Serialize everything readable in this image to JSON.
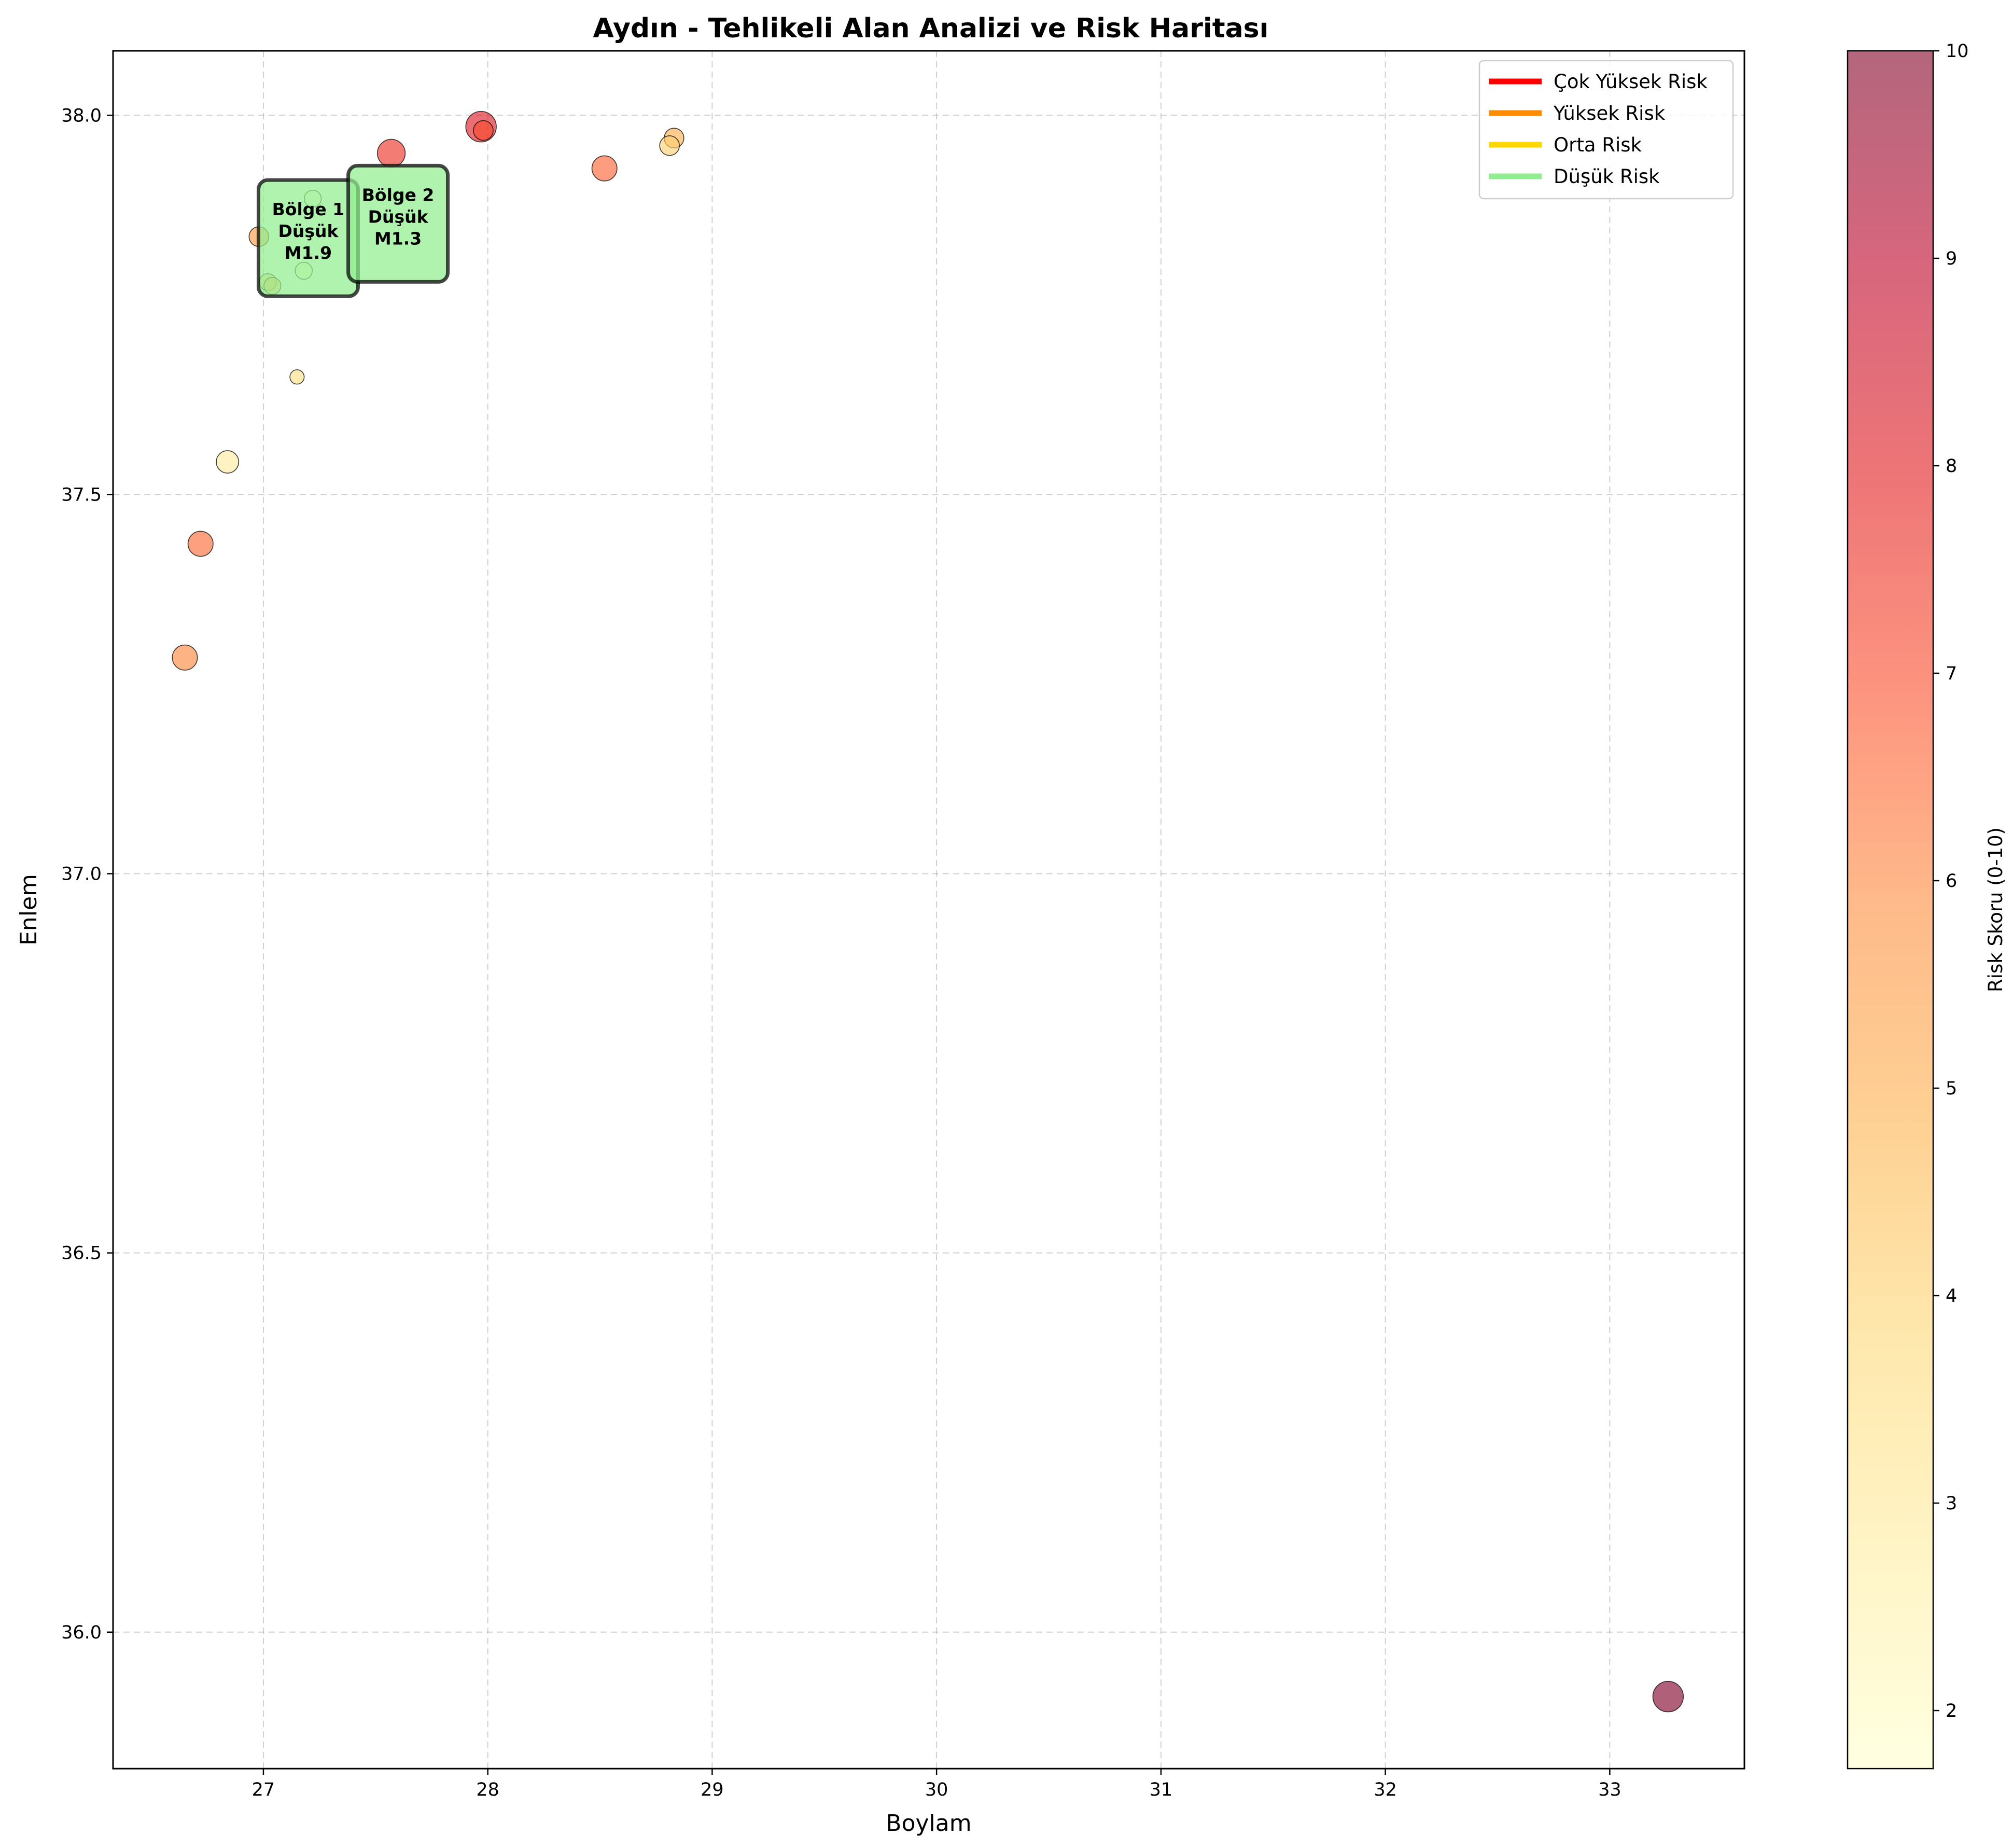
{
  "chart_data": {
    "type": "scatter",
    "title": "Aydın - Tehlikeli Alan Analizi ve Risk Haritası",
    "xlabel": "Boylam",
    "ylabel": "Enlem",
    "xlim": [
      26.33,
      33.6
    ],
    "ylim": [
      35.82,
      38.085
    ],
    "xticks": [
      27,
      28,
      29,
      30,
      31,
      32,
      33
    ],
    "yticks": [
      36.0,
      36.5,
      37.0,
      37.5,
      38.0
    ],
    "xtick_labels": [
      "27",
      "28",
      "29",
      "30",
      "31",
      "32",
      "33"
    ],
    "ytick_labels": [
      "36.0",
      "36.5",
      "37.0",
      "37.5",
      "38.0"
    ],
    "grid": true,
    "legend_position": "top-right",
    "legend": [
      {
        "label": "Çok Yüksek Risk",
        "color": "#ff0000"
      },
      {
        "label": "Yüksek Risk",
        "color": "#ff8c00"
      },
      {
        "label": "Orta Risk",
        "color": "#ffd700"
      },
      {
        "label": "Düşük Risk",
        "color": "#90ee90"
      }
    ],
    "colorbar": {
      "label": "Risk Skoru (0-10)",
      "min": 1.72,
      "max": 10,
      "ticks": [
        2,
        3,
        4,
        5,
        6,
        7,
        8,
        9,
        10
      ],
      "tick_labels": [
        "2",
        "3",
        "4",
        "5",
        "6",
        "7",
        "8",
        "9",
        "10"
      ],
      "colormap": "YlOrRd"
    },
    "points": [
      {
        "x": 27.97,
        "y": 37.985,
        "risk": 8.1,
        "size": 9
      },
      {
        "x": 27.98,
        "y": 37.98,
        "risk": 7.0,
        "size": 5
      },
      {
        "x": 27.57,
        "y": 37.95,
        "risk": 7.6,
        "size": 8
      },
      {
        "x": 28.52,
        "y": 37.93,
        "risk": 6.6,
        "size": 7
      },
      {
        "x": 28.83,
        "y": 37.97,
        "risk": 4.9,
        "size": 5
      },
      {
        "x": 28.81,
        "y": 37.96,
        "risk": 4.0,
        "size": 5
      },
      {
        "x": 26.98,
        "y": 37.84,
        "risk": 5.5,
        "size": 5
      },
      {
        "x": 27.02,
        "y": 37.78,
        "risk": 4.0,
        "size": 4
      },
      {
        "x": 27.04,
        "y": 37.775,
        "risk": 4.6,
        "size": 4
      },
      {
        "x": 27.18,
        "y": 37.795,
        "risk": 1.9,
        "size": 4
      },
      {
        "x": 27.22,
        "y": 37.89,
        "risk": 1.8,
        "size": 4
      },
      {
        "x": 27.15,
        "y": 37.655,
        "risk": 3.5,
        "size": 3
      },
      {
        "x": 26.84,
        "y": 37.543,
        "risk": 2.8,
        "size": 6
      },
      {
        "x": 26.72,
        "y": 37.435,
        "risk": 6.5,
        "size": 7
      },
      {
        "x": 26.65,
        "y": 37.285,
        "risk": 6.0,
        "size": 7
      },
      {
        "x": 33.26,
        "y": 35.915,
        "risk": 10.0,
        "size": 9
      }
    ],
    "annotations": [
      {
        "x": 27.2,
        "y": 37.838,
        "lines": [
          "Bölge 1",
          "Düşük",
          "M1.9"
        ]
      },
      {
        "x": 27.6,
        "y": 37.857,
        "lines": [
          "Bölge 2",
          "Düşük",
          "M1.3"
        ]
      }
    ]
  }
}
